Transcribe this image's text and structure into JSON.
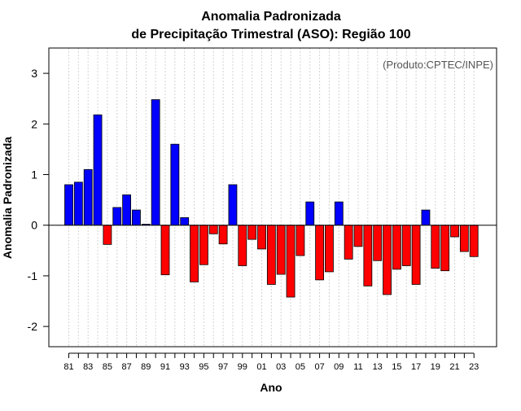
{
  "chart_data": {
    "type": "bar",
    "title_line1": "Anomalia Padronizada",
    "title_line2": "de Precipitação Trimestral (ASO): Região 100",
    "xlabel": "Ano",
    "ylabel": "Anomalia Padronizada",
    "credit": "(Produto:CPTEC/INPE)",
    "ylim": [
      -2.4,
      3.5
    ],
    "yticks": [
      -2,
      -1,
      0,
      1,
      2,
      3
    ],
    "positive_color": "#0000ff",
    "negative_color": "#ff0000",
    "categories": [
      "81",
      "82",
      "83",
      "84",
      "85",
      "86",
      "87",
      "88",
      "89",
      "90",
      "91",
      "92",
      "93",
      "94",
      "95",
      "96",
      "97",
      "98",
      "99",
      "00",
      "01",
      "02",
      "03",
      "04",
      "05",
      "06",
      "07",
      "08",
      "09",
      "10",
      "11",
      "12",
      "13",
      "14",
      "15",
      "16",
      "17",
      "18",
      "19",
      "20",
      "21",
      "22",
      "23"
    ],
    "xtick_labels": [
      "81",
      "83",
      "85",
      "87",
      "89",
      "91",
      "93",
      "95",
      "97",
      "99",
      "01",
      "03",
      "05",
      "07",
      "09",
      "11",
      "13",
      "15",
      "17",
      "19",
      "21",
      "23"
    ],
    "values": [
      0.8,
      0.85,
      1.1,
      2.18,
      -0.38,
      0.35,
      0.6,
      0.3,
      0.02,
      2.48,
      -0.98,
      1.6,
      0.15,
      -1.12,
      -0.78,
      -0.17,
      -0.37,
      0.8,
      -0.8,
      -0.28,
      -0.47,
      -1.17,
      -0.97,
      -1.42,
      -0.6,
      0.46,
      -1.08,
      -0.92,
      0.46,
      -0.67,
      -0.42,
      -1.2,
      -0.7,
      -1.37,
      -0.87,
      -0.8,
      -1.17,
      0.3,
      -0.85,
      -0.9,
      -0.23,
      -0.52,
      -0.62
    ]
  }
}
